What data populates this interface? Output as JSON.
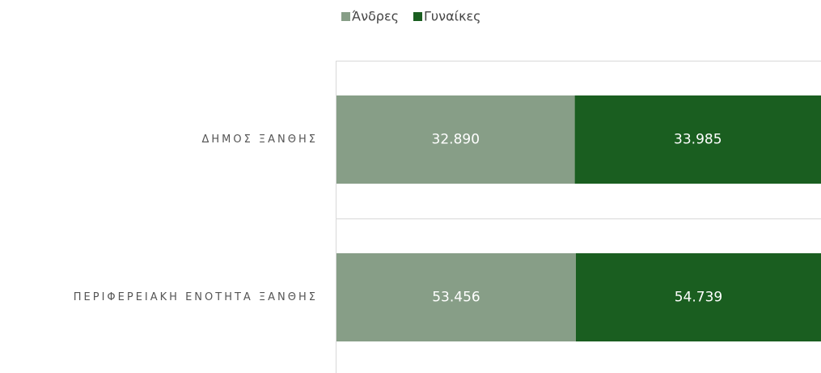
{
  "chart_data": {
    "type": "bar",
    "orientation": "horizontal",
    "stacking": "percent",
    "categories": [
      "ΔΗΜΟΣ ΞΑΝΘΗΣ",
      "ΠΕΡΙΦΕΡΕΙΑΚΗ ΕΝΟΤΗΤΑ ΞΑΝΘΗΣ"
    ],
    "series": [
      {
        "name": "Άνδρες",
        "color": "#879e87",
        "values": [
          32890,
          53456
        ],
        "value_labels": [
          "32.890",
          "53.456"
        ]
      },
      {
        "name": "Γυναίκες",
        "color": "#1a5e20",
        "values": [
          33985,
          54739
        ],
        "value_labels": [
          "33.985",
          "54.739"
        ]
      }
    ],
    "legend": "top"
  }
}
